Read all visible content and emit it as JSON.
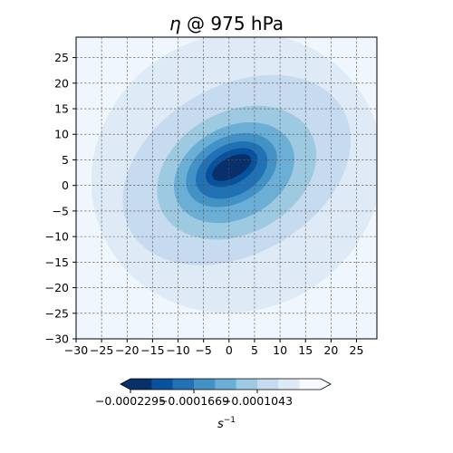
{
  "chart_data": {
    "type": "heatmap",
    "title_var": "η",
    "title_rest": " @ 975 hPa",
    "x_ticks": [
      -30,
      -25,
      -20,
      -15,
      -10,
      -5,
      0,
      5,
      10,
      15,
      20,
      25
    ],
    "y_ticks": [
      -30,
      -25,
      -20,
      -15,
      -10,
      -5,
      0,
      5,
      10,
      15,
      20,
      25
    ],
    "xlim": [
      -30,
      29
    ],
    "ylim": [
      -30,
      29
    ],
    "grid": true,
    "colorbar": {
      "orientation": "horizontal",
      "extend": "both",
      "unit_base": "s",
      "unit_exp": "−1",
      "tick_labels": [
        "−0.0002295",
        "−0.0001669",
        "−0.0001043"
      ],
      "colors": [
        "#08306b",
        "#08519c",
        "#2171b5",
        "#4292c6",
        "#6baed6",
        "#9ecae1",
        "#c6dbef",
        "#deebf7",
        "#f7fbff"
      ],
      "under_color": "#08306b",
      "over_color": "#f7fbff"
    },
    "field": {
      "background_color": "#f0f6fd",
      "levels": [
        {
          "color": "#deebf7",
          "cx": 1.5,
          "cy": 2.5,
          "rx": 29,
          "ry": 27,
          "rot": 30
        },
        {
          "color": "#c6dbef",
          "cx": 1.5,
          "cy": 3.0,
          "rx": 24,
          "ry": 16.5,
          "rot": 30
        },
        {
          "color": "#9ecae1",
          "cx": 1.5,
          "cy": 2.5,
          "rx": 16.5,
          "ry": 12,
          "rot": 28
        },
        {
          "color": "#6baed6",
          "cx": 1.0,
          "cy": 2.5,
          "rx": 12.5,
          "ry": 9,
          "rot": 28
        },
        {
          "color": "#4292c6",
          "cx": 0.5,
          "cy": 3.0,
          "rx": 9.5,
          "ry": 6.5,
          "rot": 28
        },
        {
          "color": "#2171b5",
          "cx": 0.5,
          "cy": 3.0,
          "rx": 7.5,
          "ry": 5,
          "rot": 28
        },
        {
          "color": "#08519c",
          "cx": 0.5,
          "cy": 3.5,
          "rx": 5.5,
          "ry": 3.2,
          "rot": 28
        },
        {
          "color": "#08306b",
          "cx": 0.5,
          "cy": 3.5,
          "rx": 4.2,
          "ry": 2,
          "rot": 28
        }
      ]
    }
  }
}
